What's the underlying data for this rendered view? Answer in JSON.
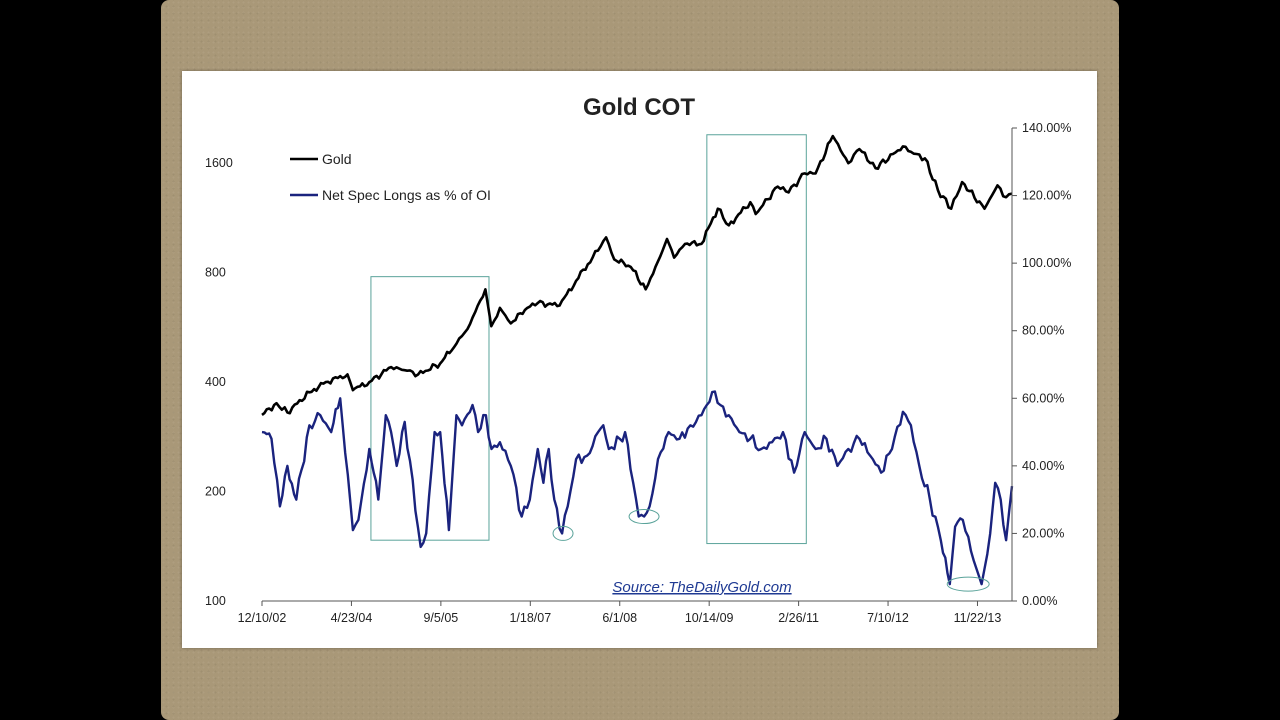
{
  "chart_data": {
    "type": "line",
    "title": "Gold COT",
    "source": "Source: TheDailyGold.com",
    "x_ticks": [
      "12/10/02",
      "4/23/04",
      "9/5/05",
      "1/18/07",
      "6/1/08",
      "10/14/09",
      "2/26/11",
      "7/10/12",
      "11/22/13"
    ],
    "x_range": [
      "12/10/02",
      "6/3/14"
    ],
    "y_left": {
      "scale": "log",
      "range": [
        100,
        2000
      ],
      "ticks": [
        "100",
        "200",
        "400",
        "800",
        "1600"
      ]
    },
    "y_right": {
      "scale": "linear",
      "range": [
        0,
        140
      ],
      "ticks": [
        "0.00%",
        "20.00%",
        "40.00%",
        "60.00%",
        "80.00%",
        "100.00%",
        "120.00%",
        "140.00%"
      ]
    },
    "legend": {
      "placement": "top-left"
    },
    "series": [
      {
        "name": "Gold",
        "axis": "left",
        "color": "#000000",
        "points": [
          [
            "12/10/02",
            325
          ],
          [
            "3/1/03",
            350
          ],
          [
            "5/1/03",
            330
          ],
          [
            "9/1/03",
            375
          ],
          [
            "12/1/03",
            400
          ],
          [
            "4/1/04",
            420
          ],
          [
            "5/1/04",
            380
          ],
          [
            "8/1/04",
            400
          ],
          [
            "12/1/04",
            440
          ],
          [
            "3/1/05",
            430
          ],
          [
            "5/1/05",
            420
          ],
          [
            "9/1/05",
            450
          ],
          [
            "12/1/05",
            510
          ],
          [
            "2/1/06",
            560
          ],
          [
            "5/12/06",
            720
          ],
          [
            "6/14/06",
            570
          ],
          [
            "8/1/06",
            640
          ],
          [
            "10/1/06",
            580
          ],
          [
            "1/1/07",
            640
          ],
          [
            "3/1/07",
            660
          ],
          [
            "7/1/07",
            650
          ],
          [
            "10/1/07",
            760
          ],
          [
            "1/1/08",
            880
          ],
          [
            "3/17/08",
            1000
          ],
          [
            "5/1/08",
            870
          ],
          [
            "8/1/08",
            830
          ],
          [
            "10/24/08",
            720
          ],
          [
            "1/1/09",
            860
          ],
          [
            "2/20/09",
            990
          ],
          [
            "4/1/09",
            880
          ],
          [
            "6/1/09",
            960
          ],
          [
            "9/1/09",
            960
          ],
          [
            "12/1/09",
            1200
          ],
          [
            "2/1/10",
            1080
          ],
          [
            "6/1/10",
            1250
          ],
          [
            "7/1/10",
            1160
          ],
          [
            "11/1/10",
            1380
          ],
          [
            "1/1/11",
            1330
          ],
          [
            "4/1/11",
            1500
          ],
          [
            "6/1/11",
            1500
          ],
          [
            "9/5/11",
            1900
          ],
          [
            "12/1/11",
            1600
          ],
          [
            "2/1/12",
            1750
          ],
          [
            "5/1/12",
            1550
          ],
          [
            "10/1/12",
            1780
          ],
          [
            "12/1/12",
            1700
          ],
          [
            "2/1/13",
            1650
          ],
          [
            "4/15/13",
            1350
          ],
          [
            "6/28/13",
            1200
          ],
          [
            "8/28/13",
            1420
          ],
          [
            "12/31/13",
            1200
          ],
          [
            "3/14/14",
            1390
          ],
          [
            "5/1/14",
            1290
          ],
          [
            "6/3/14",
            1320
          ]
        ]
      },
      {
        "name": "Net Spec Longs as % of OI",
        "axis": "right",
        "color": "#1a237e",
        "points": [
          [
            "12/10/02",
            50
          ],
          [
            "2/1/03",
            48
          ],
          [
            "3/20/03",
            28
          ],
          [
            "5/1/03",
            40
          ],
          [
            "6/20/03",
            30
          ],
          [
            "9/1/03",
            52
          ],
          [
            "11/1/03",
            55
          ],
          [
            "1/1/04",
            50
          ],
          [
            "2/20/04",
            60
          ],
          [
            "5/1/04",
            21
          ],
          [
            "6/1/04",
            24
          ],
          [
            "8/1/04",
            45
          ],
          [
            "9/20/04",
            30
          ],
          [
            "11/1/04",
            55
          ],
          [
            "12/1/04",
            50
          ],
          [
            "1/1/05",
            40
          ],
          [
            "2/15/05",
            53
          ],
          [
            "5/15/05",
            16
          ],
          [
            "6/15/05",
            20
          ],
          [
            "8/1/05",
            50
          ],
          [
            "9/1/05",
            50
          ],
          [
            "10/20/05",
            21
          ],
          [
            "12/1/05",
            55
          ],
          [
            "1/1/06",
            52
          ],
          [
            "3/1/06",
            58
          ],
          [
            "4/1/06",
            50
          ],
          [
            "5/15/06",
            55
          ],
          [
            "6/15/06",
            45
          ],
          [
            "8/1/06",
            47
          ],
          [
            "10/1/06",
            40
          ],
          [
            "12/1/06",
            25
          ],
          [
            "1/15/07",
            30
          ],
          [
            "3/1/07",
            45
          ],
          [
            "4/1/07",
            35
          ],
          [
            "5/1/07",
            45
          ],
          [
            "6/1/07",
            30
          ],
          [
            "7/15/07",
            20
          ],
          [
            "8/15/07",
            28
          ],
          [
            "10/1/07",
            42
          ],
          [
            "12/1/07",
            43
          ],
          [
            "2/1/08",
            50
          ],
          [
            "3/1/08",
            52
          ],
          [
            "4/1/08",
            45
          ],
          [
            "6/1/08",
            48
          ],
          [
            "7/1/08",
            50
          ],
          [
            "8/15/08",
            35
          ],
          [
            "9/15/08",
            25
          ],
          [
            "10/15/08",
            25
          ],
          [
            "11/15/08",
            28
          ],
          [
            "1/1/09",
            42
          ],
          [
            "3/1/09",
            50
          ],
          [
            "5/1/09",
            48
          ],
          [
            "7/1/09",
            52
          ],
          [
            "9/1/09",
            55
          ],
          [
            "10/1/09",
            58
          ],
          [
            "11/15/09",
            62
          ],
          [
            "12/15/09",
            58
          ],
          [
            "2/1/10",
            55
          ],
          [
            "4/1/10",
            50
          ],
          [
            "6/1/10",
            48
          ],
          [
            "8/1/10",
            45
          ],
          [
            "10/1/10",
            47
          ],
          [
            "12/1/10",
            50
          ],
          [
            "2/1/11",
            38
          ],
          [
            "4/1/11",
            50
          ],
          [
            "6/1/11",
            45
          ],
          [
            "8/1/11",
            48
          ],
          [
            "10/1/11",
            40
          ],
          [
            "12/1/11",
            45
          ],
          [
            "2/1/12",
            48
          ],
          [
            "4/1/12",
            43
          ],
          [
            "6/1/12",
            38
          ],
          [
            "8/1/12",
            45
          ],
          [
            "10/1/12",
            56
          ],
          [
            "11/15/12",
            52
          ],
          [
            "1/1/13",
            40
          ],
          [
            "3/1/13",
            30
          ],
          [
            "5/1/13",
            18
          ],
          [
            "6/20/13",
            5
          ],
          [
            "7/20/13",
            22
          ],
          [
            "9/1/13",
            24
          ],
          [
            "11/1/13",
            12
          ],
          [
            "12/15/13",
            5
          ],
          [
            "2/1/14",
            20
          ],
          [
            "3/1/14",
            35
          ],
          [
            "4/1/14",
            30
          ],
          [
            "5/1/14",
            18
          ],
          [
            "6/3/14",
            34
          ]
        ]
      }
    ],
    "annotations": {
      "boxes": [
        {
          "x": [
            "8/10/04",
            "6/1/06"
          ],
          "y_right": [
            18,
            96
          ]
        },
        {
          "x": [
            "10/1/09",
            "4/10/11"
          ],
          "y_right": [
            17,
            138
          ]
        }
      ],
      "ellipses": [
        {
          "x": "7/20/07",
          "y_right": 20
        },
        {
          "x": "10/15/08",
          "y_right": 25
        },
        {
          "x": "10/1/13",
          "y_right": 5
        }
      ]
    }
  }
}
